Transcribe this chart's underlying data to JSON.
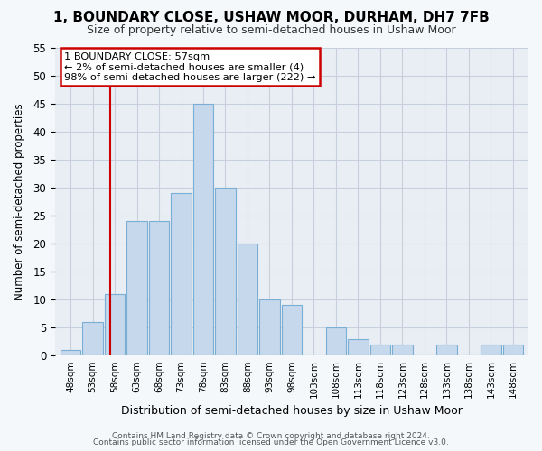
{
  "title": "1, BOUNDARY CLOSE, USHAW MOOR, DURHAM, DH7 7FB",
  "subtitle": "Size of property relative to semi-detached houses in Ushaw Moor",
  "xlabel": "Distribution of semi-detached houses by size in Ushaw Moor",
  "ylabel": "Number of semi-detached properties",
  "footer1": "Contains HM Land Registry data © Crown copyright and database right 2024.",
  "footer2": "Contains public sector information licensed under the Open Government Licence v3.0.",
  "bin_labels": [
    "48sqm",
    "53sqm",
    "58sqm",
    "63sqm",
    "68sqm",
    "73sqm",
    "78sqm",
    "83sqm",
    "88sqm",
    "93sqm",
    "98sqm",
    "103sqm",
    "108sqm",
    "113sqm",
    "118sqm",
    "123sqm",
    "128sqm",
    "133sqm",
    "138sqm",
    "143sqm",
    "148sqm"
  ],
  "bar_values": [
    1,
    6,
    11,
    24,
    24,
    29,
    45,
    30,
    20,
    10,
    9,
    0,
    5,
    3,
    2,
    2,
    0,
    2,
    0,
    2,
    2
  ],
  "bar_color": "#c5d8ec",
  "bar_edgecolor": "#7aaed4",
  "vline_color": "#cc0000",
  "vline_x_idx": 2,
  "ylim": [
    0,
    55
  ],
  "yticks": [
    0,
    5,
    10,
    15,
    20,
    25,
    30,
    35,
    40,
    45,
    50,
    55
  ],
  "annotation_title": "1 BOUNDARY CLOSE: 57sqm",
  "annotation_line1": "← 2% of semi-detached houses are smaller (4)",
  "annotation_line2": "98% of semi-detached houses are larger (222) →",
  "bg_color": "#e8eef4",
  "grid_color": "#c5d0dc",
  "fig_bg": "#f5f8fa"
}
